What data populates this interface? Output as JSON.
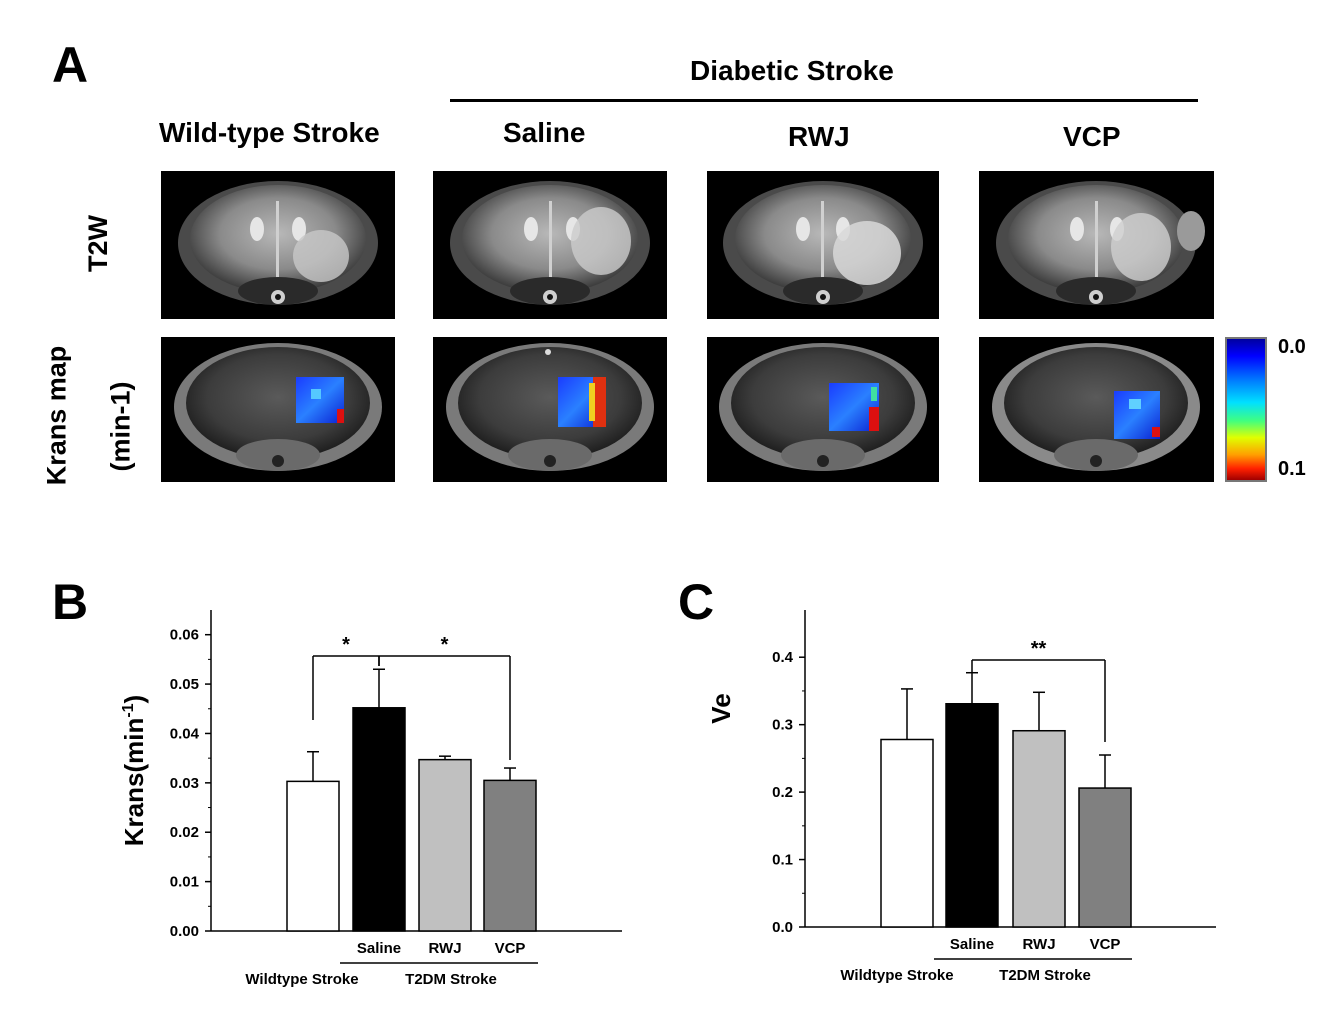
{
  "panel_a": {
    "letter": "A",
    "group_header": "Diabetic Stroke",
    "columns": [
      "Wild-type Stroke",
      "Saline",
      "RWJ",
      "VCP"
    ],
    "rows": {
      "t2w": "T2W",
      "krans_line1": "Krans map",
      "krans_line2": "(min-1)"
    },
    "colorbar": {
      "top": "0.0",
      "bottom": "0.1"
    }
  },
  "chart_data": [
    {
      "type": "bar",
      "panel": "B",
      "ylabel_main": "Krans(min",
      "ylabel_sup": "-1",
      "ylabel_tail": ")",
      "ylim": [
        0,
        0.065
      ],
      "yticks": [
        "0.00",
        "0.01",
        "0.02",
        "0.03",
        "0.04",
        "0.05",
        "0.06"
      ],
      "tick_values": [
        0,
        0.01,
        0.02,
        0.03,
        0.04,
        0.05,
        0.06
      ],
      "categories": [
        "",
        "Saline",
        "RWJ",
        "VCP"
      ],
      "values": [
        0.0303,
        0.0452,
        0.0347,
        0.0305
      ],
      "errors": [
        0.006,
        0.0078,
        0.0007,
        0.0025
      ],
      "colors": [
        "#ffffff",
        "#000000",
        "#c0c0c0",
        "#808080"
      ],
      "group_labels": [
        "Wildtype Stroke",
        "T2DM Stroke"
      ],
      "significance": [
        {
          "from": 0,
          "to": 1,
          "label": "*"
        },
        {
          "from": 1,
          "to": 3,
          "label": "*"
        }
      ]
    },
    {
      "type": "bar",
      "panel": "C",
      "ylabel_main": "Ve",
      "ylabel_sup": "",
      "ylabel_tail": "",
      "ylim": [
        0,
        0.47
      ],
      "yticks": [
        "0.0",
        "0.1",
        "0.2",
        "0.3",
        "0.4"
      ],
      "tick_values": [
        0,
        0.1,
        0.2,
        0.3,
        0.4
      ],
      "categories": [
        "",
        "Saline",
        "RWJ",
        "VCP"
      ],
      "values": [
        0.278,
        0.331,
        0.291,
        0.206
      ],
      "errors": [
        0.075,
        0.046,
        0.057,
        0.049
      ],
      "colors": [
        "#ffffff",
        "#000000",
        "#c0c0c0",
        "#808080"
      ],
      "group_labels": [
        "Wildtype Stroke",
        "T2DM Stroke"
      ],
      "significance": [
        {
          "from": 1,
          "to": 3,
          "label": "**"
        }
      ]
    }
  ]
}
